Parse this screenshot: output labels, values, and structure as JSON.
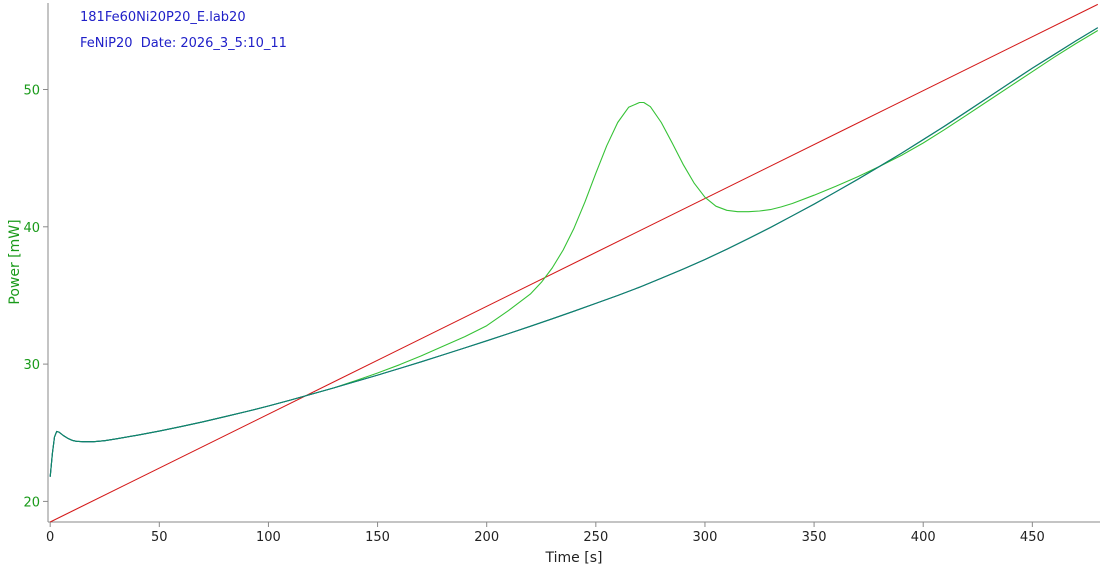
{
  "header": {
    "file_name": "181Fe60Ni20P20_E.lab20",
    "sample_line": "FeNiP20  Date: 2026_3_5:10_11"
  },
  "colors": {
    "header_text": "#2020c8",
    "y_axis_text": "#199a19",
    "x_axis_text": "#222222",
    "axis_line": "#8a8a8a"
  },
  "chart_data": {
    "type": "line",
    "title": "",
    "xlabel": "Time [s]",
    "ylabel": "Power  [mW]",
    "xlim": [
      -1,
      481
    ],
    "ylim": [
      18.5,
      56.3
    ],
    "x_ticks": [
      0,
      50,
      100,
      150,
      200,
      250,
      300,
      350,
      400,
      450
    ],
    "y_ticks": [
      20,
      30,
      40,
      50
    ],
    "grid": false,
    "legend": "none",
    "series": [
      {
        "color": "#1818b0",
        "x": [
          0,
          1,
          2,
          3,
          4,
          6,
          8,
          10,
          12,
          15,
          20,
          25,
          30,
          40,
          50,
          60,
          70,
          80,
          90,
          100,
          110,
          120,
          130,
          140,
          150,
          160,
          170,
          180,
          190,
          200,
          210,
          220,
          230,
          240,
          250,
          260,
          270,
          280,
          290,
          300,
          310,
          320,
          330,
          340,
          350,
          360,
          370,
          380,
          390,
          400,
          410,
          420,
          430,
          440,
          450,
          460,
          470,
          480
        ],
        "y": [
          21.8,
          23.5,
          24.7,
          25.1,
          25.05,
          24.8,
          24.6,
          24.45,
          24.38,
          24.35,
          24.35,
          24.42,
          24.55,
          24.82,
          25.12,
          25.45,
          25.8,
          26.17,
          26.55,
          26.95,
          27.38,
          27.82,
          28.27,
          28.73,
          29.2,
          29.68,
          30.17,
          30.67,
          31.18,
          31.7,
          32.22,
          32.75,
          33.3,
          33.85,
          34.42,
          35.0,
          35.6,
          36.25,
          36.92,
          37.62,
          38.37,
          39.15,
          39.95,
          40.8,
          41.65,
          42.55,
          43.45,
          44.4,
          45.35,
          46.35,
          47.35,
          48.4,
          49.45,
          50.5,
          51.55,
          52.55,
          53.55,
          54.5
        ]
      },
      {
        "color": "#0d8a66",
        "x": [
          0,
          1,
          2,
          3,
          4,
          6,
          8,
          10,
          12,
          15,
          20,
          25,
          30,
          40,
          50,
          60,
          70,
          80,
          90,
          100,
          110,
          120,
          130,
          140,
          150,
          160,
          170,
          180,
          190,
          200,
          210,
          220,
          230,
          240,
          250,
          260,
          270,
          280,
          290,
          300,
          310,
          320,
          330,
          340,
          350,
          360,
          370,
          380,
          390,
          400,
          410,
          420,
          430,
          440,
          450,
          460,
          470,
          480
        ],
        "y": [
          21.8,
          23.5,
          24.7,
          25.1,
          25.05,
          24.8,
          24.6,
          24.45,
          24.38,
          24.35,
          24.35,
          24.42,
          24.55,
          24.82,
          25.12,
          25.45,
          25.8,
          26.17,
          26.55,
          26.95,
          27.38,
          27.82,
          28.27,
          28.73,
          29.2,
          29.68,
          30.17,
          30.67,
          31.18,
          31.7,
          32.22,
          32.75,
          33.3,
          33.85,
          34.42,
          35.0,
          35.6,
          36.25,
          36.92,
          37.62,
          38.37,
          39.15,
          39.95,
          40.8,
          41.65,
          42.55,
          43.45,
          44.4,
          45.35,
          46.35,
          47.35,
          48.4,
          49.45,
          50.5,
          51.55,
          52.55,
          53.55,
          54.5
        ]
      },
      {
        "color": "#36c236",
        "x": [
          0,
          1,
          2,
          3,
          4,
          6,
          8,
          10,
          12,
          15,
          20,
          25,
          30,
          40,
          50,
          60,
          70,
          80,
          90,
          100,
          110,
          120,
          130,
          140,
          150,
          160,
          170,
          180,
          190,
          200,
          210,
          220,
          225,
          230,
          235,
          240,
          245,
          250,
          255,
          260,
          265,
          270,
          272,
          275,
          280,
          285,
          290,
          295,
          300,
          305,
          310,
          315,
          320,
          325,
          330,
          335,
          340,
          350,
          360,
          370,
          380,
          390,
          400,
          410,
          420,
          430,
          440,
          450,
          460,
          470,
          480
        ],
        "y": [
          21.8,
          23.5,
          24.7,
          25.1,
          25.05,
          24.8,
          24.6,
          24.45,
          24.38,
          24.35,
          24.35,
          24.42,
          24.55,
          24.82,
          25.12,
          25.45,
          25.8,
          26.17,
          26.55,
          26.95,
          27.38,
          27.82,
          28.27,
          28.8,
          29.35,
          29.95,
          30.6,
          31.3,
          32.0,
          32.8,
          33.9,
          35.1,
          35.95,
          37.0,
          38.3,
          39.9,
          41.8,
          43.9,
          45.9,
          47.6,
          48.7,
          49.05,
          49.05,
          48.75,
          47.6,
          46.1,
          44.55,
          43.2,
          42.15,
          41.5,
          41.2,
          41.1,
          41.1,
          41.15,
          41.25,
          41.45,
          41.7,
          42.3,
          42.95,
          43.65,
          44.4,
          45.2,
          46.1,
          47.1,
          48.15,
          49.2,
          50.25,
          51.3,
          52.35,
          53.35,
          54.3
        ]
      },
      {
        "color": "#d41a1a",
        "x": [
          0,
          480
        ],
        "y": [
          18.5,
          56.2
        ]
      }
    ]
  }
}
